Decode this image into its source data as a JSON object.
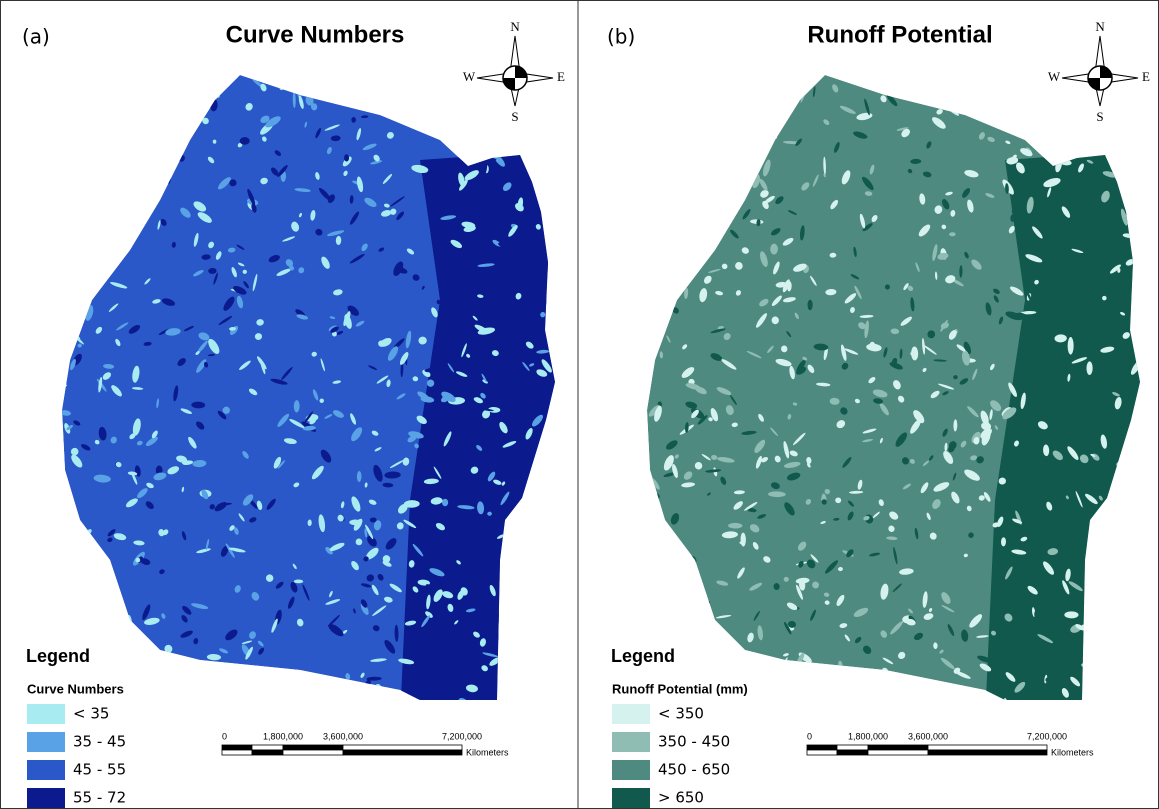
{
  "panels": [
    {
      "label": "(a)",
      "title": "Curve Numbers",
      "compass": {
        "n": "N",
        "s": "S",
        "e": "E",
        "w": "W"
      },
      "legend": {
        "title": "Legend",
        "subtitle": "Curve Numbers",
        "items": [
          {
            "label": "< 35",
            "color": "#a8ecf2"
          },
          {
            "label": "35 - 45",
            "color": "#5aa2e6"
          },
          {
            "label": "45 - 55",
            "color": "#2a58c8"
          },
          {
            "label": "55 - 72",
            "color": "#0b1a8c"
          }
        ]
      },
      "scale": {
        "ticks": [
          "0",
          "1,800,000",
          "3,600,000",
          "7,200,000"
        ],
        "unit": "Kilometers"
      }
    },
    {
      "label": "(b)",
      "title": "Runoff Potential",
      "compass": {
        "n": "N",
        "s": "S",
        "e": "E",
        "w": "W"
      },
      "legend": {
        "title": "Legend",
        "subtitle": "Runoff Potential (mm)",
        "items": [
          {
            "label": "< 350",
            "color": "#d6f2ee"
          },
          {
            "label": "350 - 450",
            "color": "#8fbcb3"
          },
          {
            "label": "450 - 650",
            "color": "#4f8a80"
          },
          {
            "label": "> 650",
            "color": "#11594c"
          }
        ]
      },
      "scale": {
        "ticks": [
          "0",
          "1,800,000",
          "3,600,000",
          "7,200,000"
        ],
        "unit": "Kilometers"
      }
    }
  ]
}
